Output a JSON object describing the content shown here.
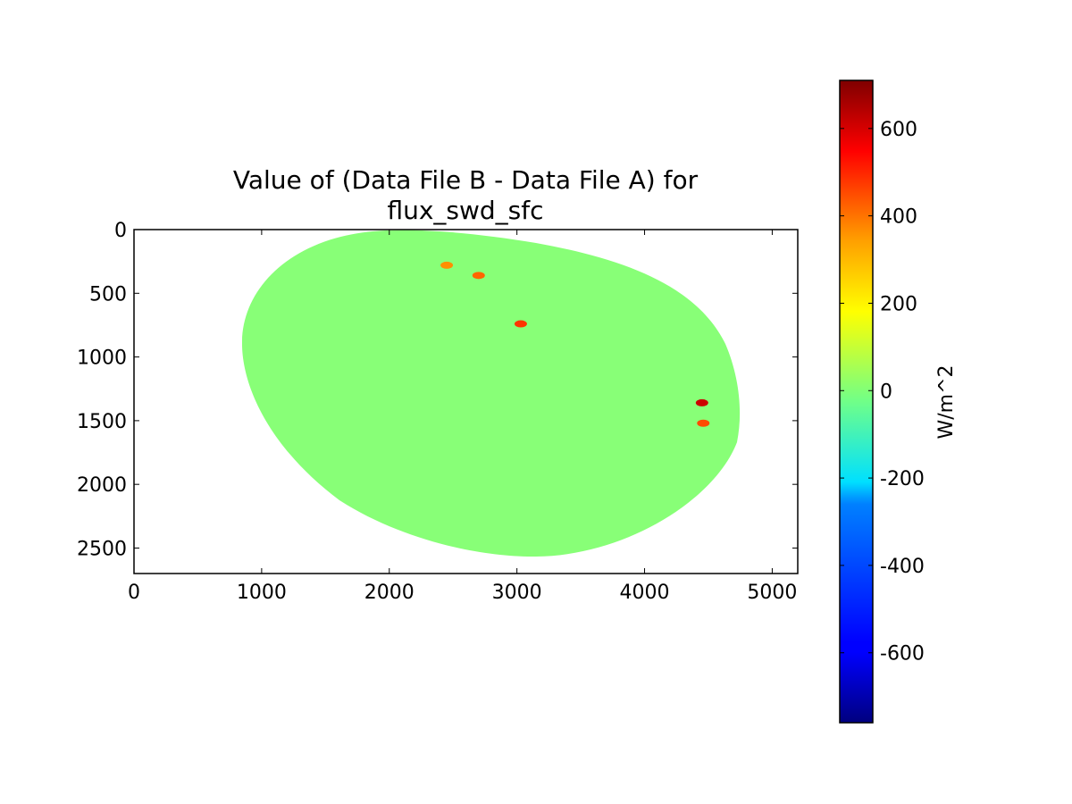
{
  "chart_data": {
    "type": "heatmap",
    "title_line1": "Value of (Data File B - Data File A) for",
    "title_line2": "flux_swd_sfc",
    "xlabel": "",
    "ylabel": "",
    "xlim": [
      0,
      5200
    ],
    "ylim": [
      2700,
      0
    ],
    "x_ticks": [
      0,
      1000,
      2000,
      3000,
      4000,
      5000
    ],
    "y_ticks": [
      0,
      500,
      1000,
      1500,
      2000,
      2500
    ],
    "x_tick_labels": [
      "0",
      "1000",
      "2000",
      "3000",
      "4000",
      "5000"
    ],
    "y_tick_labels": [
      "0",
      "500",
      "1000",
      "1500",
      "2000",
      "2500"
    ],
    "colorbar": {
      "label": "W/m^2",
      "range": [
        -760,
        710
      ],
      "ticks": [
        600,
        400,
        200,
        0,
        -200,
        -400,
        -600
      ],
      "tick_labels": [
        "600",
        "400",
        "200",
        "0",
        "-200",
        "-400",
        "-600"
      ],
      "colormap": "jet"
    },
    "background_value": 0,
    "background_color": "#88ff77",
    "grid": false,
    "features": [
      {
        "x": 3030,
        "y": 740,
        "value": 450
      },
      {
        "x": 2450,
        "y": 280,
        "value": 320
      },
      {
        "x": 4460,
        "y": 1520,
        "value": 420
      },
      {
        "x": 4450,
        "y": 1360,
        "value": 600
      },
      {
        "x": 2700,
        "y": 360,
        "value": 380
      }
    ]
  }
}
